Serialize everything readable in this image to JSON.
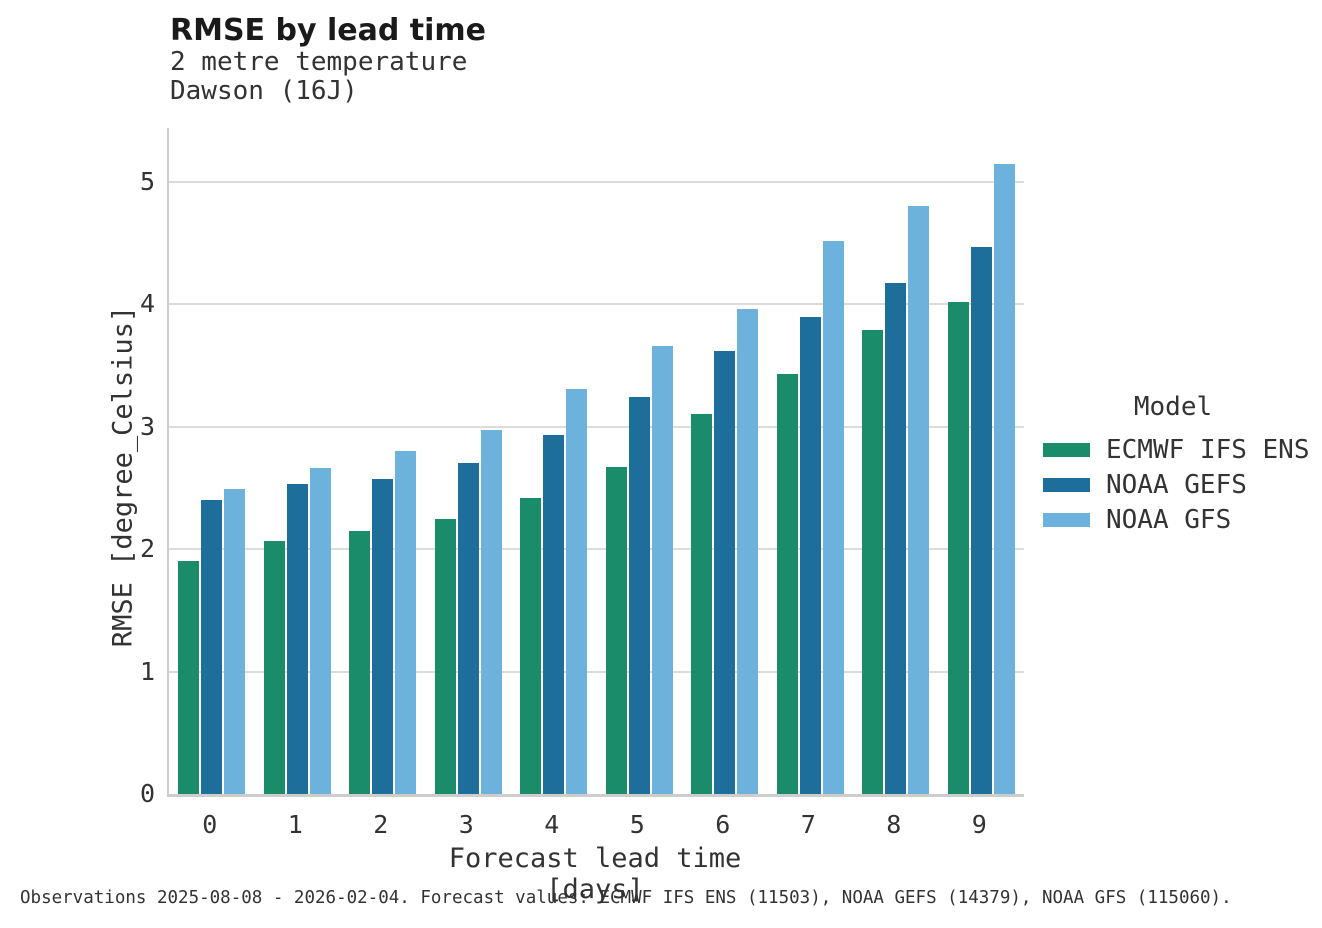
{
  "header": {
    "title": "RMSE by lead time",
    "subtitle1": "2 metre temperature",
    "subtitle2": "Dawson (16J)"
  },
  "chart_data": {
    "type": "bar",
    "title": "RMSE by lead time",
    "subtitle": [
      "2 metre temperature",
      "Dawson (16J)"
    ],
    "categories": [
      0,
      1,
      2,
      3,
      4,
      5,
      6,
      7,
      8,
      9
    ],
    "series": [
      {
        "name": "ECMWF IFS ENS",
        "color": "#1a8c69",
        "values": [
          1.9,
          2.07,
          2.15,
          2.25,
          2.42,
          2.67,
          3.1,
          3.43,
          3.79,
          4.02
        ]
      },
      {
        "name": "NOAA GEFS",
        "color": "#1e6e9c",
        "values": [
          2.4,
          2.53,
          2.57,
          2.7,
          2.93,
          3.24,
          3.62,
          3.9,
          4.17,
          4.47
        ]
      },
      {
        "name": "NOAA GFS",
        "color": "#6cb2dc",
        "values": [
          2.49,
          2.66,
          2.8,
          2.97,
          3.31,
          3.66,
          3.96,
          4.52,
          4.8,
          5.15
        ]
      }
    ],
    "xlabel": "Forecast lead time [days]",
    "ylabel": "RMSE [degree_Celsius]",
    "ylim": [
      0,
      5.44
    ],
    "yticks": [
      0,
      1,
      2,
      3,
      4,
      5
    ],
    "grid": true,
    "legend_title": "Model",
    "legend_position": "right"
  },
  "footer": {
    "caption": "Observations 2025-08-08 - 2026-02-04. Forecast values: ECMWF IFS ENS (11503), NOAA GEFS (14379), NOAA GFS (115060)."
  }
}
